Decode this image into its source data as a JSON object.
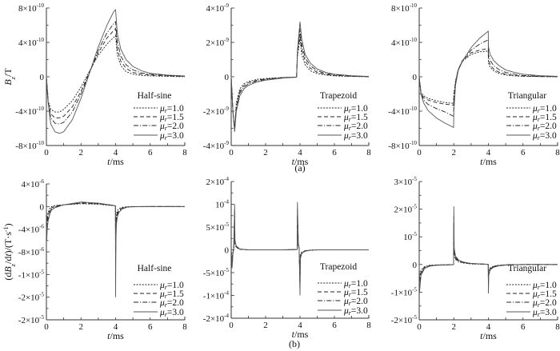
{
  "figure": {
    "captions": [
      "(a)",
      "(b)"
    ],
    "ylabels": [
      [
        {
          "t": "B",
          "i": 1
        },
        {
          "t": "z",
          "i": 1,
          "sub": 1
        },
        {
          "t": "/T"
        }
      ],
      [
        {
          "t": "(d"
        },
        {
          "t": "B",
          "i": 1
        },
        {
          "t": "z",
          "i": 1,
          "sub": 1
        },
        {
          "t": "/d"
        },
        {
          "t": "t",
          "i": 1
        },
        {
          "t": ")/(T·s"
        },
        {
          "t": "-1",
          "sup": 1
        },
        {
          "t": ")"
        }
      ]
    ],
    "xlabel": [
      {
        "t": "t",
        "i": 1
      },
      {
        "t": "/ms"
      }
    ],
    "colors": {
      "mu1": "#222222",
      "mu15": "#222222",
      "mu2": "#222222",
      "mu3": "#555555",
      "axis": "#333333"
    }
  },
  "chart_data": [
    {
      "type": "line",
      "row": 0,
      "legend_title": "Half-sine",
      "y_unit": "1e-10 T",
      "xlim": [
        0,
        8
      ],
      "ylim": [
        -8,
        8
      ],
      "xticks": [
        0,
        2,
        4,
        6,
        8
      ],
      "yticks": [
        {
          "v": 8,
          "base": "8×10",
          "exp": "-10"
        },
        {
          "v": 4,
          "base": "4×10",
          "exp": "-10"
        },
        {
          "v": 0,
          "base": "0",
          "exp": ""
        },
        {
          "v": -4,
          "base": "-4×10",
          "exp": "-10"
        },
        {
          "v": -8,
          "base": "-8×10",
          "exp": "-10"
        }
      ],
      "x": [
        0,
        0.1,
        0.25,
        0.5,
        0.75,
        1,
        1.5,
        2,
        2.5,
        3,
        3.5,
        3.9,
        4,
        4.1,
        4.3,
        4.6,
        5,
        5.5,
        6,
        7,
        8
      ],
      "series": [
        {
          "mu": "1.0",
          "style": "dot",
          "values": [
            0,
            -2.8,
            -3.8,
            -4.1,
            -4.1,
            -3.8,
            -2.8,
            -1.2,
            0.7,
            2.5,
            3.8,
            4.6,
            4.8,
            2.5,
            1.3,
            0.6,
            0.3,
            0.15,
            0.1,
            0.05,
            0
          ]
        },
        {
          "mu": "1.5",
          "style": "dash",
          "values": [
            0,
            -2.9,
            -4.3,
            -4.8,
            -4.8,
            -4.6,
            -3.5,
            -1.7,
            0.6,
            2.8,
            4.5,
            5.4,
            5.6,
            3.2,
            1.8,
            1.0,
            0.5,
            0.3,
            0.2,
            0.1,
            0.05
          ]
        },
        {
          "mu": "2.0",
          "style": "dashdot",
          "values": [
            0,
            -3,
            -4.8,
            -5.4,
            -5.5,
            -5.3,
            -4.1,
            -2,
            0.5,
            3.1,
            5.1,
            6.2,
            6.4,
            4,
            2.4,
            1.4,
            0.8,
            0.45,
            0.3,
            0.15,
            0.05
          ]
        },
        {
          "mu": "3.0",
          "style": "solid",
          "values": [
            0,
            -3,
            -5.5,
            -6.4,
            -6.6,
            -6.4,
            -5,
            -2.5,
            0.5,
            3.5,
            6,
            7.6,
            7.8,
            5,
            3.2,
            2,
            1.2,
            0.7,
            0.4,
            0.2,
            0.1
          ]
        }
      ]
    },
    {
      "type": "line",
      "row": 0,
      "legend_title": "Trapezoid",
      "y_unit": "1e-9 T",
      "xlim": [
        0,
        8
      ],
      "ylim": [
        -4,
        4
      ],
      "xticks": [
        0,
        2,
        4,
        6,
        8
      ],
      "yticks": [
        {
          "v": 4,
          "base": "4×10",
          "exp": "-9"
        },
        {
          "v": 2,
          "base": "2×10",
          "exp": "-9"
        },
        {
          "v": 0,
          "base": "0",
          "exp": ""
        },
        {
          "v": -2,
          "base": "-2×10",
          "exp": "-9"
        },
        {
          "v": -4,
          "base": "-4×10",
          "exp": "-9"
        }
      ],
      "x": [
        0,
        0.1,
        0.2,
        0.3,
        0.5,
        0.75,
        1,
        1.5,
        2,
        3,
        3.8,
        3.85,
        4,
        4.1,
        4.3,
        4.6,
        5,
        5.5,
        6,
        7,
        8
      ],
      "series": [
        {
          "mu": "1.0",
          "style": "dot",
          "values": [
            0,
            -2,
            -3,
            -1.5,
            -0.7,
            -0.4,
            -0.28,
            -0.15,
            -0.1,
            -0.04,
            -0.02,
            1.2,
            2.2,
            1.3,
            0.7,
            0.35,
            0.18,
            0.1,
            0.05,
            0.02,
            0
          ]
        },
        {
          "mu": "1.5",
          "style": "dash",
          "values": [
            0,
            -2,
            -3.05,
            -1.7,
            -0.85,
            -0.5,
            -0.35,
            -0.2,
            -0.13,
            -0.05,
            -0.02,
            1.3,
            2.5,
            1.6,
            0.9,
            0.5,
            0.26,
            0.14,
            0.08,
            0.03,
            0.01
          ]
        },
        {
          "mu": "2.0",
          "style": "dashdot",
          "values": [
            0,
            -2,
            -3.1,
            -1.85,
            -0.95,
            -0.6,
            -0.42,
            -0.25,
            -0.16,
            -0.06,
            -0.025,
            1.4,
            2.8,
            1.9,
            1.1,
            0.65,
            0.35,
            0.19,
            0.11,
            0.04,
            0.01
          ]
        },
        {
          "mu": "3.0",
          "style": "solid",
          "values": [
            0,
            -2,
            -3.2,
            -2,
            -1.1,
            -0.7,
            -0.5,
            -0.3,
            -0.2,
            -0.08,
            -0.03,
            1.5,
            3.2,
            2.2,
            1.3,
            0.8,
            0.45,
            0.25,
            0.15,
            0.06,
            0.02
          ]
        }
      ]
    },
    {
      "type": "line",
      "row": 0,
      "legend_title": "Triangular",
      "y_unit": "1e-10 T",
      "xlim": [
        0,
        8
      ],
      "ylim": [
        -8,
        8
      ],
      "xticks": [
        0,
        2,
        4,
        6,
        8
      ],
      "yticks": [
        {
          "v": 8,
          "base": "8×10",
          "exp": "-10"
        },
        {
          "v": 4,
          "base": "4×10",
          "exp": "-10"
        },
        {
          "v": 0,
          "base": "0",
          "exp": ""
        },
        {
          "v": -4,
          "base": "-4×10",
          "exp": "-10"
        },
        {
          "v": -8,
          "base": "-8×10",
          "exp": "-10"
        }
      ],
      "x": [
        0,
        0.1,
        0.25,
        0.5,
        1,
        1.5,
        1.99,
        2,
        2.1,
        2.25,
        2.5,
        3,
        3.5,
        3.99,
        4,
        4.1,
        4.3,
        4.6,
        5,
        5.5,
        6,
        7,
        8
      ],
      "series": [
        {
          "mu": "1.0",
          "style": "dot",
          "values": [
            0,
            -1.8,
            -2.2,
            -2.5,
            -2.8,
            -3,
            -3.1,
            -2,
            -0.5,
            0.8,
            1.8,
            2.6,
            2.9,
            3.0,
            1.6,
            1.1,
            0.7,
            0.4,
            0.2,
            0.1,
            0.05,
            0.02,
            0
          ]
        },
        {
          "mu": "1.5",
          "style": "dash",
          "values": [
            0,
            -1.9,
            -2.4,
            -2.7,
            -3,
            -3.2,
            -3.3,
            -2.3,
            -0.6,
            0.8,
            1.9,
            2.8,
            3.1,
            3.3,
            2,
            1.4,
            0.9,
            0.55,
            0.3,
            0.15,
            0.08,
            0.03,
            0.01
          ]
        },
        {
          "mu": "2.0",
          "style": "dashdot",
          "values": [
            0,
            -1.95,
            -2.7,
            -3.2,
            -3.7,
            -4.1,
            -4.6,
            -3,
            -0.8,
            0.8,
            1.9,
            3.1,
            3.8,
            4.3,
            2.6,
            1.9,
            1.3,
            0.85,
            0.5,
            0.3,
            0.16,
            0.06,
            0.02
          ]
        },
        {
          "mu": "3.0",
          "style": "solid",
          "values": [
            0,
            -2,
            -3,
            -3.9,
            -4.8,
            -5.4,
            -5.9,
            -4,
            -1,
            0.7,
            1.8,
            3.4,
            4.5,
            5.3,
            3.5,
            2.6,
            1.9,
            1.3,
            0.8,
            0.5,
            0.3,
            0.12,
            0.05
          ]
        }
      ]
    },
    {
      "type": "line",
      "row": 1,
      "legend_title": "Half-sine",
      "y_unit": "1e-6 T/s",
      "xlim": [
        0,
        8
      ],
      "ylim": [
        -20,
        4
      ],
      "xticks": [
        0,
        2,
        4,
        6,
        8
      ],
      "yticks": [
        {
          "v": 4,
          "base": "4×10",
          "exp": "-6"
        },
        {
          "v": 0,
          "base": "0",
          "exp": ""
        },
        {
          "v": -4,
          "base": "-4×10",
          "exp": "-6"
        },
        {
          "v": -8,
          "base": "-8×10",
          "exp": "-6"
        },
        {
          "v": -12,
          "base": "-1×10",
          "exp": "-5"
        },
        {
          "v": -16,
          "base": "-2×10",
          "exp": "-5"
        },
        {
          "v": -20,
          "base": "-2×10",
          "exp": "-5"
        }
      ],
      "x": [
        0,
        0.02,
        0.05,
        0.1,
        0.2,
        0.3,
        0.5,
        1,
        2,
        3,
        3.9,
        3.99,
        4,
        4.02,
        4.05,
        4.1,
        4.2,
        4.4,
        4.7,
        5,
        6,
        8
      ],
      "series": [
        {
          "mu": "1.0",
          "style": "dot",
          "values": [
            0,
            -2.5,
            -1.8,
            -1,
            -0.3,
            0,
            0.2,
            0.3,
            0.5,
            0.4,
            0.15,
            0.1,
            -6,
            -2.5,
            -1.3,
            -0.7,
            -0.35,
            -0.12,
            -0.04,
            0,
            0,
            0
          ]
        },
        {
          "mu": "1.5",
          "style": "dash",
          "values": [
            0,
            -3.5,
            -2.5,
            -1.5,
            -0.6,
            -0.2,
            0.1,
            0.3,
            0.6,
            0.5,
            0.18,
            0.1,
            -9,
            -3.5,
            -1.9,
            -1.1,
            -0.6,
            -0.22,
            -0.06,
            -0.02,
            0,
            0
          ]
        },
        {
          "mu": "2.0",
          "style": "dashdot",
          "values": [
            0,
            -4.5,
            -3.2,
            -2,
            -0.9,
            -0.4,
            -0.05,
            0.3,
            0.7,
            0.55,
            0.2,
            0.1,
            -12,
            -4.5,
            -2.4,
            -1.4,
            -0.8,
            -0.3,
            -0.08,
            -0.03,
            0,
            0
          ]
        },
        {
          "mu": "3.0",
          "style": "solid",
          "values": [
            0,
            -6,
            -4,
            -2.5,
            -1.3,
            -0.6,
            -0.2,
            0.3,
            0.8,
            0.6,
            0.2,
            0.1,
            -16,
            -6,
            -3,
            -1.8,
            -1,
            -0.4,
            -0.1,
            -0.05,
            0,
            0
          ]
        }
      ]
    },
    {
      "type": "line",
      "row": 1,
      "legend_title": "Trapezoid",
      "y_unit": "1e-5 T/s",
      "xlim": [
        0,
        8
      ],
      "ylim": [
        -15,
        15
      ],
      "xticks": [
        0,
        2,
        4,
        6,
        8
      ],
      "yticks": [
        {
          "v": 15,
          "base": "2×10",
          "exp": "-4"
        },
        {
          "v": 10,
          "base": "10",
          "exp": "-4"
        },
        {
          "v": 5,
          "base": "5×10",
          "exp": "-5"
        },
        {
          "v": 0,
          "base": "0",
          "exp": ""
        },
        {
          "v": -5,
          "base": "-5×10",
          "exp": "-5"
        },
        {
          "v": -10,
          "base": "-1×10",
          "exp": "-4"
        },
        {
          "v": -15,
          "base": "-2×10",
          "exp": "-4"
        }
      ],
      "x": [
        0,
        0.05,
        0.1,
        0.15,
        0.2,
        0.22,
        0.3,
        0.5,
        1,
        2,
        3,
        3.84,
        3.85,
        3.9,
        3.95,
        4,
        4.02,
        4.1,
        4.3,
        4.6,
        5,
        8
      ],
      "series": [
        {
          "mu": "1.0",
          "style": "dot",
          "values": [
            0,
            -2,
            -0.5,
            0.3,
            6,
            1.2,
            0.5,
            0.1,
            0,
            0,
            0,
            0.05,
            6,
            1,
            0.3,
            -6,
            -1.2,
            -0.5,
            -0.2,
            -0.05,
            0,
            0
          ]
        },
        {
          "mu": "1.5",
          "style": "dash",
          "values": [
            0,
            -2.7,
            -0.7,
            0.4,
            7.5,
            1.5,
            0.6,
            0.15,
            0,
            0,
            0,
            0.07,
            7.5,
            1.2,
            0.4,
            -7.5,
            -1.5,
            -0.6,
            -0.2,
            -0.07,
            0,
            0
          ]
        },
        {
          "mu": "2.0",
          "style": "dashdot",
          "values": [
            0,
            -3.3,
            -0.8,
            0.45,
            8.7,
            1.8,
            0.7,
            0.18,
            0,
            0,
            0,
            0.08,
            9,
            1.3,
            0.45,
            -8.7,
            -1.8,
            -0.7,
            -0.25,
            -0.08,
            0,
            0
          ]
        },
        {
          "mu": "3.0",
          "style": "solid",
          "values": [
            0,
            -4,
            -1,
            0.5,
            10,
            2,
            0.8,
            0.2,
            0,
            0,
            0,
            0.1,
            10.5,
            1.5,
            0.5,
            -10,
            -2,
            -0.8,
            -0.3,
            -0.1,
            0,
            0
          ]
        }
      ]
    },
    {
      "type": "line",
      "row": 1,
      "legend_title": "Triangular",
      "y_unit": "1e-5 T/s",
      "xlim": [
        0,
        8
      ],
      "ylim": [
        -2,
        3
      ],
      "xticks": [
        0,
        2,
        4,
        6,
        8
      ],
      "yticks": [
        {
          "v": 3,
          "base": "3×10",
          "exp": "-5"
        },
        {
          "v": 2,
          "base": "2×10",
          "exp": "-5"
        },
        {
          "v": 1,
          "base": "10",
          "exp": "-5"
        },
        {
          "v": 0,
          "base": "0",
          "exp": ""
        },
        {
          "v": -1,
          "base": "-1×10",
          "exp": "-5"
        },
        {
          "v": -2,
          "base": "-2×10",
          "exp": "-5"
        }
      ],
      "x": [
        0,
        0.02,
        0.1,
        0.3,
        0.6,
        1,
        1.99,
        2,
        2.02,
        2.1,
        2.3,
        2.6,
        3,
        3.99,
        4,
        4.02,
        4.1,
        4.3,
        4.6,
        5,
        6,
        8
      ],
      "series": [
        {
          "mu": "1.0",
          "style": "dot",
          "values": [
            0,
            -0.5,
            -0.2,
            -0.08,
            -0.03,
            -0.015,
            -0.005,
            1.2,
            0.35,
            0.18,
            0.09,
            0.05,
            0.02,
            0.005,
            -0.6,
            -0.25,
            -0.12,
            -0.06,
            -0.03,
            -0.01,
            0,
            0
          ]
        },
        {
          "mu": "1.5",
          "style": "dash",
          "values": [
            0,
            -0.65,
            -0.27,
            -0.1,
            -0.04,
            -0.02,
            -0.007,
            1.5,
            0.45,
            0.22,
            0.11,
            0.06,
            0.03,
            0.007,
            -0.75,
            -0.3,
            -0.15,
            -0.07,
            -0.035,
            -0.015,
            0,
            0
          ]
        },
        {
          "mu": "2.0",
          "style": "dashdot",
          "values": [
            0,
            -0.8,
            -0.33,
            -0.12,
            -0.05,
            -0.025,
            -0.008,
            1.75,
            0.5,
            0.26,
            0.13,
            0.07,
            0.035,
            0.008,
            -0.88,
            -0.35,
            -0.17,
            -0.085,
            -0.04,
            -0.018,
            0,
            0
          ]
        },
        {
          "mu": "3.0",
          "style": "solid",
          "values": [
            0,
            -1,
            -0.4,
            -0.15,
            -0.06,
            -0.03,
            -0.01,
            2.1,
            0.6,
            0.3,
            0.15,
            0.08,
            0.04,
            0.01,
            -1.05,
            -0.4,
            -0.2,
            -0.1,
            -0.05,
            -0.02,
            0,
            0
          ]
        }
      ]
    }
  ],
  "legend_symbol": {
    "mu": "μ",
    "sub": "r"
  }
}
